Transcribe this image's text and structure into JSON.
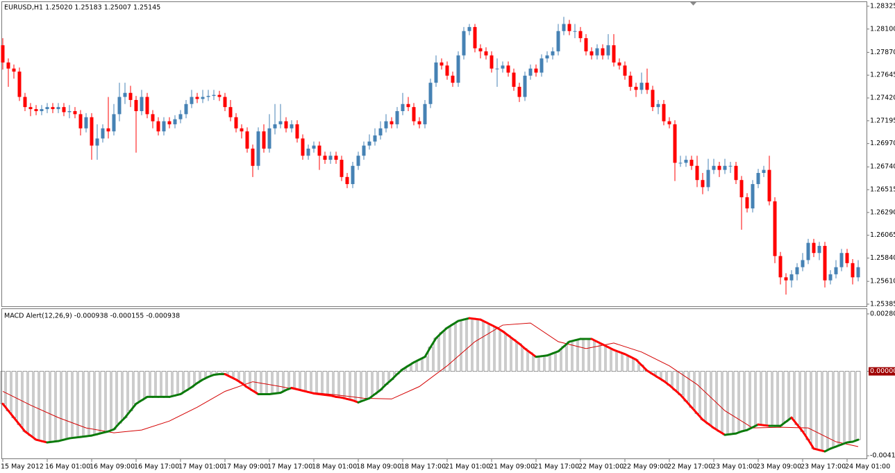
{
  "chart_data": [
    {
      "type": "candlestick",
      "title": "EURUSD,H1  1.25020 1.25183 1.25007 1.25145",
      "up_color": "#4682b4",
      "down_color": "#ff0000",
      "ylim": [
        1.25364,
        1.28366
      ],
      "yticks": [
        1.28325,
        {
          "value": 1.281,
          "label": "1.28100"
        },
        {
          "value": 1.2787,
          "label": "1.27870"
        },
        1.27645,
        {
          "value": 1.2742,
          "label": "1.27420"
        },
        1.27195,
        {
          "value": 1.2697,
          "label": "1.26970"
        },
        {
          "value": 1.2674,
          "label": "1.26740"
        },
        1.26515,
        {
          "value": 1.2629,
          "label": "1.26290"
        },
        1.26065,
        {
          "value": 1.2584,
          "label": "1.25840"
        },
        {
          "value": 1.2561,
          "label": "1.25610"
        },
        1.25385
      ],
      "categories": [
        "15 May 2012",
        null,
        null,
        null,
        null,
        null,
        null,
        null,
        "16 May 01:00",
        null,
        null,
        null,
        null,
        null,
        null,
        null,
        "16 May 09:00",
        null,
        null,
        null,
        null,
        null,
        null,
        null,
        "16 May 17:00",
        null,
        null,
        null,
        null,
        null,
        null,
        null,
        "17 May 01:00",
        null,
        null,
        null,
        null,
        null,
        null,
        null,
        "17 May 09:00",
        null,
        null,
        null,
        null,
        null,
        null,
        null,
        "17 May 17:00",
        null,
        null,
        null,
        null,
        null,
        null,
        null,
        "18 May 01:00",
        null,
        null,
        null,
        null,
        null,
        null,
        null,
        "18 May 09:00",
        null,
        null,
        null,
        null,
        null,
        null,
        null,
        "18 May 17:00",
        null,
        null,
        null,
        null,
        null,
        null,
        null,
        "21 May 01:00",
        null,
        null,
        null,
        null,
        null,
        null,
        null,
        "21 May 09:00",
        null,
        null,
        null,
        null,
        null,
        null,
        null,
        "21 May 17:00",
        null,
        null,
        null,
        null,
        null,
        null,
        null,
        "22 May 01:00",
        null,
        null,
        null,
        null,
        null,
        null,
        null,
        "22 May 09:00",
        null,
        null,
        null,
        null,
        null,
        null,
        null,
        "22 May 17:00",
        null,
        null,
        null,
        null,
        null,
        null,
        null,
        "23 May 01:00",
        null,
        null,
        null,
        null,
        null,
        null,
        null,
        "23 May 09:00",
        null,
        null,
        null,
        null,
        null,
        null,
        null,
        "23 May 17:00",
        null,
        null,
        null,
        null,
        null,
        null,
        null,
        "24 May 01:00",
        null,
        null
      ],
      "open": [
        1.2794,
        1.2777,
        1.2771,
        1.2768,
        1.2743,
        1.2733,
        1.2731,
        1.2729,
        1.2731,
        1.2733,
        1.2731,
        1.2733,
        1.2728,
        1.2729,
        1.2726,
        1.2712,
        1.2723,
        1.2695,
        1.2702,
        1.2712,
        1.2709,
        1.2726,
        1.2743,
        1.2747,
        1.274,
        1.2729,
        1.2743,
        1.2726,
        1.2719,
        1.2709,
        1.2719,
        1.2716,
        1.2721,
        1.2726,
        1.2736,
        1.2743,
        1.2741,
        1.2743,
        1.2744,
        1.2745,
        1.2743,
        1.2733,
        1.2723,
        1.2712,
        1.2709,
        1.2692,
        1.2675,
        1.2709,
        1.2692,
        1.2712,
        1.2716,
        1.2719,
        1.2712,
        1.2716,
        1.2702,
        1.2685,
        1.2692,
        1.2695,
        1.2685,
        1.2681,
        1.2685,
        1.2681,
        1.2664,
        1.2657,
        1.2675,
        1.2685,
        1.2695,
        1.2699,
        1.2705,
        1.2712,
        1.2719,
        1.2716,
        1.2729,
        1.2736,
        1.2733,
        1.2719,
        1.2716,
        1.2736,
        1.2757,
        1.2777,
        1.2774,
        1.2764,
        1.2757,
        1.2784,
        1.2808,
        1.2812,
        1.2791,
        1.2788,
        1.2784,
        1.2771,
        1.2771,
        1.2774,
        1.2767,
        1.2753,
        1.2743,
        1.2764,
        1.2771,
        1.2767,
        1.2781,
        1.2784,
        1.2788,
        1.2808,
        1.2815,
        1.2808,
        1.2808,
        1.2801,
        1.2788,
        1.2784,
        1.2791,
        1.2784,
        1.2794,
        1.2777,
        1.2774,
        1.2764,
        1.2753,
        1.275,
        1.2757,
        1.275,
        1.2733,
        1.2736,
        1.2719,
        1.2716,
        1.2678,
        1.2678,
        1.2681,
        1.2675,
        1.2661,
        1.2654,
        1.2671,
        1.2675,
        1.2671,
        1.2675,
        1.2675,
        1.2661,
        1.2644,
        1.2633,
        1.2657,
        1.2668,
        1.2671,
        1.264,
        1.2586,
        1.2565,
        1.2562,
        1.2568,
        1.2575,
        1.2582,
        1.2599,
        1.2589,
        1.2596,
        1.2562,
        1.2568,
        1.2575,
        1.2589,
        1.2579,
        1.2565
      ],
      "high": [
        1.2801,
        1.2781,
        1.2775,
        1.2772,
        1.2747,
        1.2737,
        1.2735,
        1.2735,
        1.2737,
        1.2737,
        1.2737,
        1.2737,
        1.2735,
        1.2733,
        1.273,
        1.2727,
        1.2727,
        1.2716,
        1.2716,
        1.2743,
        1.2736,
        1.2757,
        1.2757,
        1.2754,
        1.2744,
        1.275,
        1.2747,
        1.273,
        1.2723,
        1.2723,
        1.2723,
        1.2725,
        1.273,
        1.274,
        1.275,
        1.2747,
        1.275,
        1.275,
        1.275,
        1.2749,
        1.2747,
        1.274,
        1.2727,
        1.2716,
        1.2713,
        1.2696,
        1.2713,
        1.2716,
        1.2726,
        1.2736,
        1.2736,
        1.2723,
        1.272,
        1.272,
        1.2706,
        1.2696,
        1.2699,
        1.2699,
        1.2689,
        1.2689,
        1.2689,
        1.2685,
        1.2668,
        1.2679,
        1.2689,
        1.2699,
        1.2706,
        1.2712,
        1.2719,
        1.2726,
        1.2723,
        1.2733,
        1.2747,
        1.2743,
        1.2737,
        1.2723,
        1.274,
        1.2761,
        1.2784,
        1.2781,
        1.2778,
        1.2768,
        1.2788,
        1.2812,
        1.2815,
        1.2815,
        1.2795,
        1.2792,
        1.2788,
        1.2781,
        1.2778,
        1.2778,
        1.2771,
        1.2757,
        1.2768,
        1.2775,
        1.2775,
        1.2785,
        1.2788,
        1.2792,
        1.2815,
        1.2822,
        1.2819,
        1.2815,
        1.2812,
        1.2805,
        1.2792,
        1.2795,
        1.2795,
        1.2805,
        1.2805,
        1.2781,
        1.2778,
        1.2768,
        1.2757,
        1.2767,
        1.2771,
        1.2754,
        1.274,
        1.274,
        1.2723,
        1.272,
        1.2685,
        1.2685,
        1.2685,
        1.2685,
        1.2668,
        1.2682,
        1.2682,
        1.2679,
        1.2682,
        1.2679,
        1.2679,
        1.2665,
        1.2648,
        1.2661,
        1.2672,
        1.2675,
        1.2685,
        1.2644,
        1.259,
        1.2569,
        1.2572,
        1.2579,
        1.2589,
        1.2603,
        1.2603,
        1.26,
        1.26,
        1.2572,
        1.2582,
        1.2593,
        1.2593,
        1.2583,
        1.2582
      ],
      "low": [
        1.277,
        1.2753,
        1.2761,
        1.2739,
        1.2729,
        1.2724,
        1.2725,
        1.2725,
        1.2727,
        1.2727,
        1.2727,
        1.2724,
        1.2722,
        1.2722,
        1.2705,
        1.2708,
        1.2681,
        1.2681,
        1.2698,
        1.2702,
        1.2705,
        1.2719,
        1.2736,
        1.2733,
        1.2688,
        1.2725,
        1.2722,
        1.2712,
        1.2705,
        1.2705,
        1.2712,
        1.2712,
        1.2717,
        1.2722,
        1.2732,
        1.2737,
        1.2737,
        1.2739,
        1.274,
        1.2739,
        1.2729,
        1.2719,
        1.2708,
        1.2702,
        1.2688,
        1.2664,
        1.2671,
        1.2688,
        1.2688,
        1.2706,
        1.2712,
        1.2708,
        1.2708,
        1.2698,
        1.2681,
        1.2681,
        1.2688,
        1.2671,
        1.2677,
        1.2677,
        1.2677,
        1.266,
        1.2653,
        1.2653,
        1.2671,
        1.2681,
        1.2691,
        1.2695,
        1.2701,
        1.2708,
        1.2712,
        1.2712,
        1.2725,
        1.2729,
        1.2715,
        1.2712,
        1.2712,
        1.2732,
        1.2753,
        1.277,
        1.276,
        1.2753,
        1.2753,
        1.278,
        1.2804,
        1.2787,
        1.2781,
        1.278,
        1.2767,
        1.2753,
        1.2767,
        1.2763,
        1.2749,
        1.2738,
        1.2739,
        1.276,
        1.2763,
        1.2763,
        1.2777,
        1.278,
        1.2784,
        1.2804,
        1.2804,
        1.2801,
        1.2797,
        1.2784,
        1.278,
        1.278,
        1.278,
        1.278,
        1.2773,
        1.277,
        1.276,
        1.2749,
        1.2743,
        1.2746,
        1.2746,
        1.2729,
        1.2726,
        1.2715,
        1.2712,
        1.266,
        1.2674,
        1.2674,
        1.2671,
        1.2654,
        1.2647,
        1.265,
        1.2667,
        1.2664,
        1.2667,
        1.2668,
        1.2657,
        1.2612,
        1.2629,
        1.2629,
        1.2653,
        1.2664,
        1.2636,
        1.2579,
        1.2558,
        1.2548,
        1.2555,
        1.2562,
        1.2571,
        1.2578,
        1.2585,
        1.2582,
        1.2555,
        1.2558,
        1.2564,
        1.2571,
        1.2575,
        1.2558,
        1.2561
      ],
      "close": [
        1.2777,
        1.2771,
        1.2768,
        1.2743,
        1.2733,
        1.2731,
        1.2729,
        1.2731,
        1.2733,
        1.2731,
        1.2733,
        1.2728,
        1.2729,
        1.2726,
        1.2712,
        1.2723,
        1.2695,
        1.2702,
        1.2712,
        1.2709,
        1.2726,
        1.2743,
        1.2747,
        1.274,
        1.2729,
        1.2743,
        1.2726,
        1.2719,
        1.2709,
        1.2719,
        1.2716,
        1.2721,
        1.2726,
        1.2736,
        1.2743,
        1.2741,
        1.2743,
        1.2744,
        1.2745,
        1.2743,
        1.2733,
        1.2723,
        1.2712,
        1.2709,
        1.2692,
        1.2675,
        1.2709,
        1.2692,
        1.2712,
        1.2716,
        1.2719,
        1.2712,
        1.2716,
        1.2702,
        1.2685,
        1.2692,
        1.2695,
        1.2685,
        1.2681,
        1.2685,
        1.2681,
        1.2664,
        1.2657,
        1.2675,
        1.2685,
        1.2695,
        1.2699,
        1.2705,
        1.2712,
        1.2719,
        1.2716,
        1.2729,
        1.2736,
        1.2733,
        1.2719,
        1.2716,
        1.2736,
        1.2757,
        1.2777,
        1.2774,
        1.2764,
        1.2757,
        1.2784,
        1.2808,
        1.2812,
        1.2791,
        1.2788,
        1.2784,
        1.2771,
        1.2771,
        1.2774,
        1.2767,
        1.2753,
        1.2743,
        1.2764,
        1.2771,
        1.2767,
        1.2781,
        1.2784,
        1.2788,
        1.2808,
        1.2815,
        1.2808,
        1.2808,
        1.2801,
        1.2788,
        1.2784,
        1.2791,
        1.2784,
        1.2794,
        1.2777,
        1.2774,
        1.2764,
        1.2753,
        1.275,
        1.2757,
        1.275,
        1.2733,
        1.2736,
        1.2719,
        1.2716,
        1.2678,
        1.2678,
        1.2681,
        1.2675,
        1.2661,
        1.2654,
        1.2671,
        1.2675,
        1.2671,
        1.2675,
        1.2675,
        1.2661,
        1.2644,
        1.2633,
        1.2657,
        1.2668,
        1.2671,
        1.264,
        1.2586,
        1.2565,
        1.2562,
        1.2568,
        1.2575,
        1.2582,
        1.2599,
        1.2589,
        1.2596,
        1.2562,
        1.2568,
        1.2575,
        1.2589,
        1.2579,
        1.2565,
        1.2575
      ]
    },
    {
      "type": "macd",
      "title": "MACD Alert(12,26,9) -0.000938 -0.000155 -0.000938",
      "up_color": "#0b7a0b",
      "down_color": "#ff0000",
      "signal_color": "#d40000",
      "bar_color": "#555555",
      "zero_color": "#a00000",
      "ylim": [
        -0.00425,
        0.00304
      ],
      "yticks": [
        0.002805,
        {
          "value": 0,
          "label": "0.000000"
        },
        -0.00412
      ],
      "main": [
        -0.001584,
        -0.001921,
        -0.002258,
        -0.002595,
        -0.002932,
        -0.003134,
        -0.003336,
        -0.003404,
        -0.003471,
        -0.003437,
        -0.003404,
        -0.003336,
        -0.003269,
        -0.003235,
        -0.003202,
        -0.003168,
        -0.003134,
        -0.003067,
        -0.002999,
        -0.002932,
        -0.002831,
        -0.002528,
        -0.002258,
        -0.001921,
        -0.001584,
        -0.001415,
        -0.001247,
        -0.001247,
        -0.001247,
        -0.001247,
        -0.001247,
        -0.00118,
        -0.001112,
        -0.000944,
        -0.000775,
        -0.000573,
        -0.000404,
        -0.00027,
        -0.000169,
        -0.000135,
        -0.000135,
        -0.00027,
        -0.000404,
        -0.000573,
        -0.000775,
        -0.000944,
        -0.001112,
        -0.001112,
        -0.001112,
        -0.001078,
        -0.001045,
        -0.00091,
        -0.000809,
        -0.000876,
        -0.000944,
        -0.001011,
        -0.001078,
        -0.001112,
        -0.001146,
        -0.00118,
        -0.001247,
        -0.001281,
        -0.001348,
        -0.001415,
        -0.001517,
        -0.001415,
        -0.001314,
        -0.001112,
        -0.00091,
        -0.00064,
        -0.000404,
        -0.000135,
        0.000101,
        0.00027,
        0.000438,
        0.000573,
        0.000708,
        0.00118,
        0.001618,
        0.001887,
        0.002123,
        0.002292,
        0.00246,
        0.002528,
        0.002595,
        0.002561,
        0.002528,
        0.002393,
        0.002258,
        0.002123,
        0.001955,
        0.001752,
        0.00155,
        0.001348,
        0.001112,
        0.00091,
        0.000708,
        0.000741,
        0.000775,
        0.000876,
        0.000977,
        0.001213,
        0.001449,
        0.001517,
        0.001584,
        0.001584,
        0.001584,
        0.001449,
        0.001314,
        0.00118,
        0.001045,
        0.000944,
        0.000843,
        0.000708,
        0.000573,
        0.000303,
        3.4e-05,
        -0.000135,
        -0.000303,
        -0.000472,
        -0.000674,
        -0.00091,
        -0.001146,
        -0.001449,
        -0.001752,
        -0.002056,
        -0.002359,
        -0.002561,
        -0.002763,
        -0.002932,
        -0.0031,
        -0.003067,
        -0.003033,
        -0.002932,
        -0.002865,
        -0.00273,
        -0.002595,
        -0.002629,
        -0.002662,
        -0.002662,
        -0.002662,
        -0.00246,
        -0.002258,
        -0.002595,
        -0.002932,
        -0.003336,
        -0.003774,
        -0.003842,
        -0.003909,
        -0.003774,
        -0.003673,
        -0.003572,
        -0.003471,
        -0.003437,
        -0.003336
      ],
      "signal": {
        "x": [
          0,
          5,
          10,
          15,
          20,
          25,
          30,
          35,
          40,
          45,
          50,
          55,
          60,
          65,
          70,
          75,
          80,
          85,
          90,
          95,
          100,
          105,
          110,
          115,
          120,
          125,
          130,
          135,
          140,
          145,
          150,
          154
        ],
        "values": [
          -0.000977,
          -0.001651,
          -0.002258,
          -0.002763,
          -0.002999,
          -0.002865,
          -0.002426,
          -0.001752,
          -0.000977,
          -0.000506,
          -0.000741,
          -0.001011,
          -0.001146,
          -0.001314,
          -0.001348,
          -0.000741,
          0.00027,
          0.001449,
          0.002258,
          0.002359,
          0.001449,
          0.001112,
          0.001382,
          0.000944,
          0.00027,
          -0.00064,
          -0.001921,
          -0.002763,
          -0.00273,
          -0.002763,
          -0.003437,
          -0.003673
        ]
      }
    }
  ]
}
